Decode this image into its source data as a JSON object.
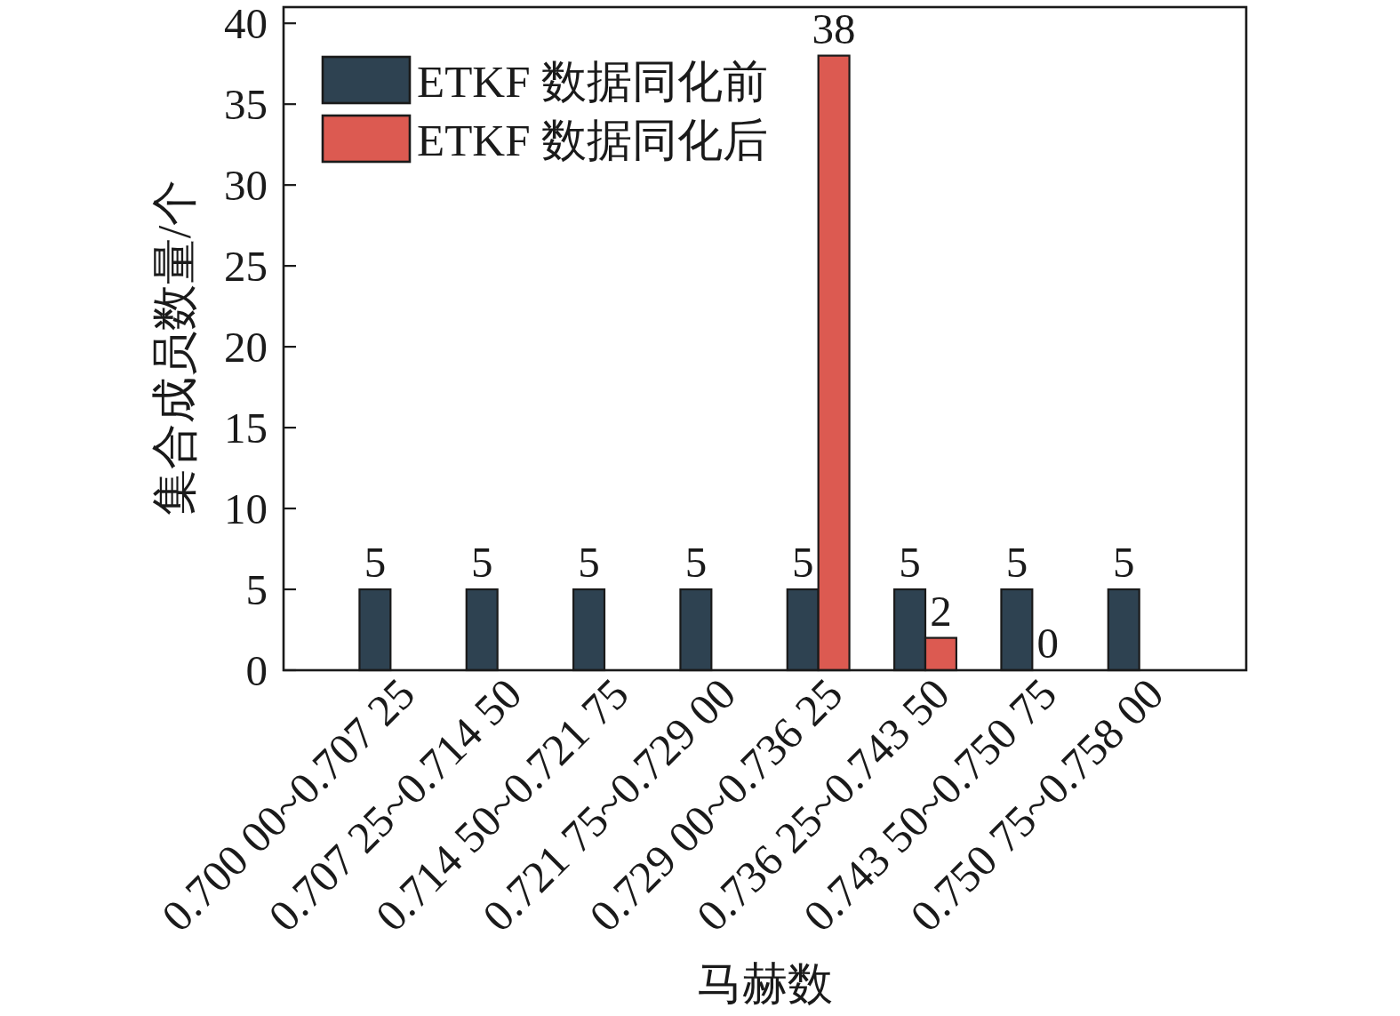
{
  "chart_data": {
    "type": "bar",
    "xlabel": "马赫数",
    "ylabel": "集合成员数量/个",
    "categories": [
      "0.700 00~0.707 25",
      "0.707 25~0.714 50",
      "0.714 50~0.721 75",
      "0.721 75~0.729 00",
      "0.729 00~0.736 25",
      "0.736 25~0.743 50",
      "0.743 50~0.750 75",
      "0.750 75~0.758 00"
    ],
    "series": [
      {
        "name": "ETKF 数据同化前",
        "color": "#2e4251",
        "values": [
          5,
          5,
          5,
          5,
          5,
          5,
          5,
          5
        ]
      },
      {
        "name": "ETKF 数据同化后",
        "color": "#dc5a51",
        "values": [
          null,
          null,
          null,
          null,
          38,
          2,
          0,
          null
        ]
      }
    ],
    "ylim": [
      0,
      41
    ],
    "yticks": [
      0,
      5,
      10,
      15,
      20,
      25,
      30,
      35,
      40
    ],
    "data_labels": true,
    "legend": "top left"
  }
}
